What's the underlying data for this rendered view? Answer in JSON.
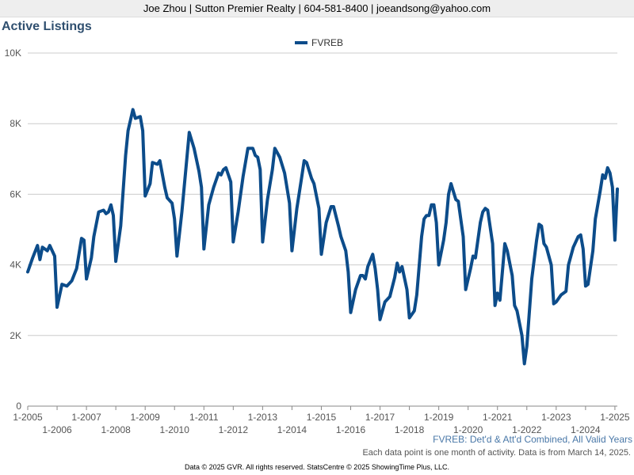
{
  "header": {
    "contact": "Joe Zhou | Sutton Premier Realty | 604-581-8400 | joeandsong@yahoo.com"
  },
  "footnotes": {
    "series_note": "FVREB: Det'd & Att'd Combined, All Valid Years",
    "data_note": "Each data point is one month of activity. Data is from March 14, 2025.",
    "copyright": "Data © 2025 GVR. All rights reserved. StatsCentre © 2025 ShowingTime Plus, LLC."
  },
  "colors": {
    "series": "#0c4c8a",
    "grid": "#cccccc",
    "axis": "#888888"
  },
  "chart_data": {
    "type": "line",
    "title": "Active Listings",
    "xlabel": "",
    "ylabel": "",
    "ylim": [
      0,
      10000
    ],
    "xlim": [
      "2005-01",
      "2025-02"
    ],
    "grid": true,
    "legend_position": "top-center",
    "y_ticks": [
      {
        "value": 0,
        "label": "0"
      },
      {
        "value": 2000,
        "label": "2K"
      },
      {
        "value": 4000,
        "label": "4K"
      },
      {
        "value": 6000,
        "label": "6K"
      },
      {
        "value": 8000,
        "label": "8K"
      },
      {
        "value": 10000,
        "label": "10K"
      }
    ],
    "x_ticks": [
      "1-2005",
      "1-2006",
      "1-2007",
      "1-2008",
      "1-2009",
      "1-2010",
      "1-2011",
      "1-2012",
      "1-2013",
      "1-2014",
      "1-2015",
      "1-2016",
      "1-2017",
      "1-2018",
      "1-2019",
      "1-2020",
      "1-2021",
      "1-2022",
      "1-2023",
      "1-2024",
      "1-2025"
    ],
    "series": [
      {
        "name": "FVREB",
        "points": [
          [
            "2005-01",
            3800
          ],
          [
            "2005-03",
            4200
          ],
          [
            "2005-05",
            4550
          ],
          [
            "2005-06",
            4150
          ],
          [
            "2005-07",
            4500
          ],
          [
            "2005-09",
            4400
          ],
          [
            "2005-10",
            4550
          ],
          [
            "2005-12",
            4250
          ],
          [
            "2006-01",
            2800
          ],
          [
            "2006-03",
            3450
          ],
          [
            "2006-05",
            3400
          ],
          [
            "2006-07",
            3550
          ],
          [
            "2006-09",
            3900
          ],
          [
            "2006-11",
            4750
          ],
          [
            "2006-12",
            4700
          ],
          [
            "2007-01",
            3600
          ],
          [
            "2007-03",
            4200
          ],
          [
            "2007-04",
            4800
          ],
          [
            "2007-06",
            5500
          ],
          [
            "2007-08",
            5550
          ],
          [
            "2007-09",
            5450
          ],
          [
            "2007-10",
            5500
          ],
          [
            "2007-11",
            5700
          ],
          [
            "2007-12",
            5400
          ],
          [
            "2008-01",
            4100
          ],
          [
            "2008-03",
            5100
          ],
          [
            "2008-05",
            7100
          ],
          [
            "2008-06",
            7800
          ],
          [
            "2008-08",
            8400
          ],
          [
            "2008-09",
            8150
          ],
          [
            "2008-11",
            8200
          ],
          [
            "2008-12",
            7800
          ],
          [
            "2009-01",
            5950
          ],
          [
            "2009-03",
            6300
          ],
          [
            "2009-04",
            6900
          ],
          [
            "2009-06",
            6850
          ],
          [
            "2009-07",
            6950
          ],
          [
            "2009-09",
            6200
          ],
          [
            "2009-10",
            5900
          ],
          [
            "2009-12",
            5750
          ],
          [
            "2010-01",
            5300
          ],
          [
            "2010-02",
            4250
          ],
          [
            "2010-04",
            5500
          ],
          [
            "2010-06",
            7000
          ],
          [
            "2010-07",
            7750
          ],
          [
            "2010-09",
            7300
          ],
          [
            "2010-11",
            6650
          ],
          [
            "2010-12",
            6200
          ],
          [
            "2011-01",
            4450
          ],
          [
            "2011-03",
            5700
          ],
          [
            "2011-05",
            6200
          ],
          [
            "2011-07",
            6600
          ],
          [
            "2011-08",
            6550
          ],
          [
            "2011-09",
            6700
          ],
          [
            "2011-10",
            6750
          ],
          [
            "2011-12",
            6350
          ],
          [
            "2012-01",
            4650
          ],
          [
            "2012-03",
            5500
          ],
          [
            "2012-05",
            6500
          ],
          [
            "2012-07",
            7300
          ],
          [
            "2012-09",
            7300
          ],
          [
            "2012-10",
            7100
          ],
          [
            "2012-11",
            7050
          ],
          [
            "2012-12",
            6700
          ],
          [
            "2013-01",
            4650
          ],
          [
            "2013-03",
            5850
          ],
          [
            "2013-05",
            6700
          ],
          [
            "2013-06",
            7300
          ],
          [
            "2013-08",
            7050
          ],
          [
            "2013-10",
            6600
          ],
          [
            "2013-12",
            5750
          ],
          [
            "2014-01",
            4400
          ],
          [
            "2014-03",
            5600
          ],
          [
            "2014-05",
            6500
          ],
          [
            "2014-06",
            6950
          ],
          [
            "2014-07",
            6900
          ],
          [
            "2014-09",
            6450
          ],
          [
            "2014-10",
            6300
          ],
          [
            "2014-12",
            5600
          ],
          [
            "2015-01",
            4300
          ],
          [
            "2015-03",
            5200
          ],
          [
            "2015-05",
            5650
          ],
          [
            "2015-06",
            5650
          ],
          [
            "2015-08",
            5100
          ],
          [
            "2015-09",
            4800
          ],
          [
            "2015-11",
            4400
          ],
          [
            "2015-12",
            3800
          ],
          [
            "2016-01",
            2650
          ],
          [
            "2016-03",
            3300
          ],
          [
            "2016-05",
            3700
          ],
          [
            "2016-06",
            3700
          ],
          [
            "2016-07",
            3600
          ],
          [
            "2016-08",
            3950
          ],
          [
            "2016-10",
            4300
          ],
          [
            "2016-11",
            3900
          ],
          [
            "2016-12",
            3300
          ],
          [
            "2017-01",
            2450
          ],
          [
            "2017-03",
            2950
          ],
          [
            "2017-05",
            3100
          ],
          [
            "2017-07",
            3650
          ],
          [
            "2017-08",
            4050
          ],
          [
            "2017-09",
            3800
          ],
          [
            "2017-10",
            3950
          ],
          [
            "2017-12",
            3300
          ],
          [
            "2018-01",
            2500
          ],
          [
            "2018-03",
            2700
          ],
          [
            "2018-04",
            3150
          ],
          [
            "2018-06",
            4800
          ],
          [
            "2018-07",
            5300
          ],
          [
            "2018-08",
            5400
          ],
          [
            "2018-09",
            5400
          ],
          [
            "2018-10",
            5700
          ],
          [
            "2018-11",
            5700
          ],
          [
            "2018-12",
            5200
          ],
          [
            "2019-01",
            4000
          ],
          [
            "2019-03",
            4700
          ],
          [
            "2019-04",
            5200
          ],
          [
            "2019-05",
            6000
          ],
          [
            "2019-06",
            6300
          ],
          [
            "2019-08",
            5850
          ],
          [
            "2019-09",
            5800
          ],
          [
            "2019-11",
            4800
          ],
          [
            "2019-12",
            3300
          ],
          [
            "2020-02",
            3900
          ],
          [
            "2020-03",
            4250
          ],
          [
            "2020-04",
            4200
          ],
          [
            "2020-06",
            5200
          ],
          [
            "2020-07",
            5500
          ],
          [
            "2020-08",
            5600
          ],
          [
            "2020-09",
            5550
          ],
          [
            "2020-11",
            4600
          ],
          [
            "2020-12",
            2850
          ],
          [
            "2021-01",
            3200
          ],
          [
            "2021-02",
            3000
          ],
          [
            "2021-04",
            4600
          ],
          [
            "2021-05",
            4400
          ],
          [
            "2021-07",
            3700
          ],
          [
            "2021-08",
            2850
          ],
          [
            "2021-09",
            2700
          ],
          [
            "2021-11",
            2000
          ],
          [
            "2021-12",
            1200
          ],
          [
            "2022-01",
            1700
          ],
          [
            "2022-03",
            3600
          ],
          [
            "2022-05",
            4700
          ],
          [
            "2022-06",
            5150
          ],
          [
            "2022-07",
            5100
          ],
          [
            "2022-08",
            4600
          ],
          [
            "2022-09",
            4500
          ],
          [
            "2022-11",
            4000
          ],
          [
            "2022-12",
            2900
          ],
          [
            "2023-01",
            2950
          ],
          [
            "2023-03",
            3150
          ],
          [
            "2023-05",
            3250
          ],
          [
            "2023-06",
            4000
          ],
          [
            "2023-08",
            4500
          ],
          [
            "2023-10",
            4800
          ],
          [
            "2023-11",
            4850
          ],
          [
            "2023-12",
            4450
          ],
          [
            "2024-01",
            3400
          ],
          [
            "2024-02",
            3450
          ],
          [
            "2024-04",
            4400
          ],
          [
            "2024-05",
            5300
          ],
          [
            "2024-07",
            6100
          ],
          [
            "2024-08",
            6550
          ],
          [
            "2024-09",
            6450
          ],
          [
            "2024-10",
            6750
          ],
          [
            "2024-11",
            6600
          ],
          [
            "2024-12",
            6200
          ],
          [
            "2025-01",
            4700
          ],
          [
            "2025-02",
            6150
          ]
        ]
      }
    ]
  }
}
